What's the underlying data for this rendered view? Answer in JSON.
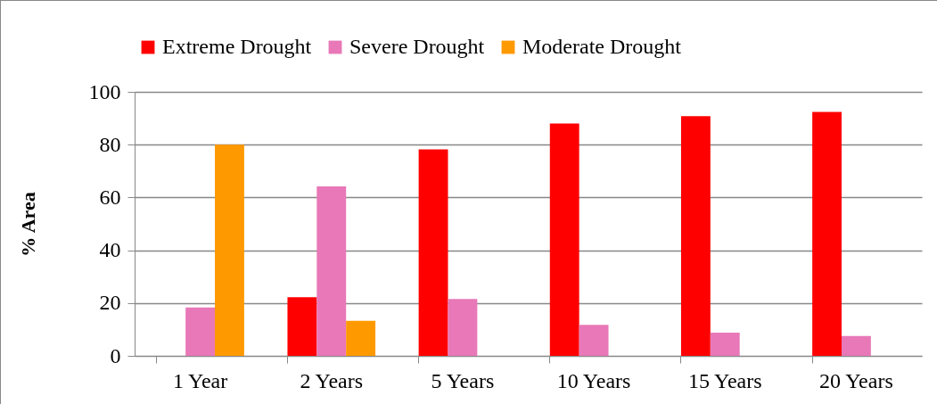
{
  "chart_data": {
    "type": "bar",
    "ylabel": "% Area",
    "categories": [
      "1 Year",
      "2 Years",
      "5 Years",
      "10 Years",
      "15 Years",
      "20 Years"
    ],
    "series": [
      {
        "name": "Extreme Drought",
        "color": "#ff0000",
        "values": [
          0,
          22.2,
          78.2,
          88.0,
          90.8,
          92.4
        ]
      },
      {
        "name": "Severe Drought",
        "color": "#e878b8",
        "values": [
          18.3,
          64.2,
          21.5,
          11.7,
          8.8,
          7.5
        ]
      },
      {
        "name": "Moderate Drought",
        "color": "#ff9900",
        "values": [
          80,
          13.3,
          0,
          0,
          0,
          0
        ]
      }
    ],
    "ylim": [
      0,
      100
    ],
    "yticks": [
      0,
      20,
      40,
      60,
      80,
      100
    ],
    "grid": "y",
    "legend": "top"
  }
}
